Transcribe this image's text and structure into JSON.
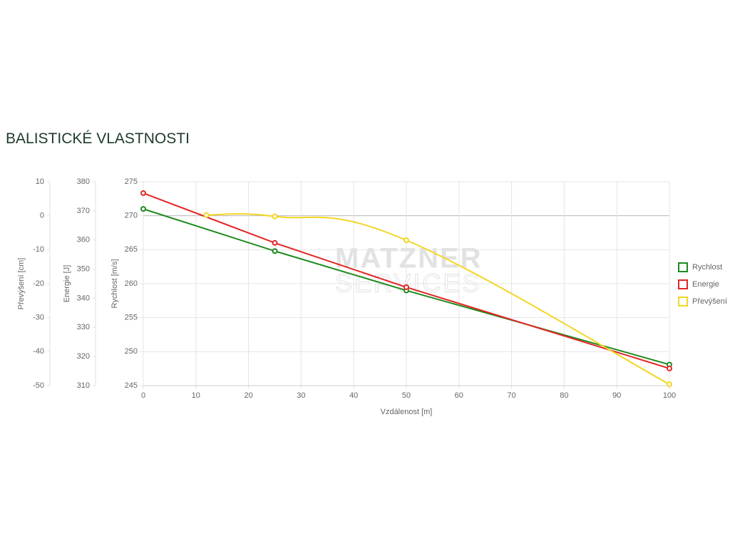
{
  "chart_data": {
    "type": "line",
    "title": "BALISTICKÉ VLASTNOSTI",
    "watermark": [
      "MATZNER",
      "SERVICES"
    ],
    "x_label": "Vzdálenost [m]",
    "xlim": [
      0,
      100
    ],
    "xticks": [
      0,
      10,
      20,
      30,
      40,
      50,
      60,
      70,
      80,
      90,
      100
    ],
    "axes": [
      {
        "id": "y",
        "label": "Rychlost [m/s]",
        "lim": [
          245,
          275
        ],
        "ticks": [
          245,
          250,
          255,
          260,
          265,
          270,
          275
        ]
      },
      {
        "id": "y2",
        "label": "Energie [J]",
        "lim": [
          310,
          380
        ],
        "ticks": [
          310,
          320,
          330,
          340,
          350,
          360,
          370,
          380
        ]
      },
      {
        "id": "y3",
        "label": "Převýšení [cm]",
        "lim": [
          -50,
          10
        ],
        "ticks": [
          -50,
          -40,
          -30,
          -20,
          -10,
          0,
          10
        ]
      }
    ],
    "grid": true,
    "legend": "right",
    "series": [
      {
        "name": "Rychlost",
        "color": "#1e8a1e",
        "axis": "y",
        "smooth": false,
        "x": [
          0,
          25,
          50,
          100
        ],
        "values": [
          271.0,
          264.8,
          259.0,
          248.1
        ]
      },
      {
        "name": "Energie",
        "color": "#e32424",
        "axis": "y2",
        "smooth": false,
        "x": [
          0,
          25,
          50,
          100
        ],
        "values": [
          376.1,
          359.0,
          343.8,
          315.9
        ]
      },
      {
        "name": "Převýšení",
        "color": "#f2d625",
        "axis": "y3",
        "smooth": true,
        "x": [
          12,
          25,
          50,
          100
        ],
        "values": [
          0.2,
          -0.2,
          -7.2,
          -49.6
        ]
      }
    ]
  }
}
